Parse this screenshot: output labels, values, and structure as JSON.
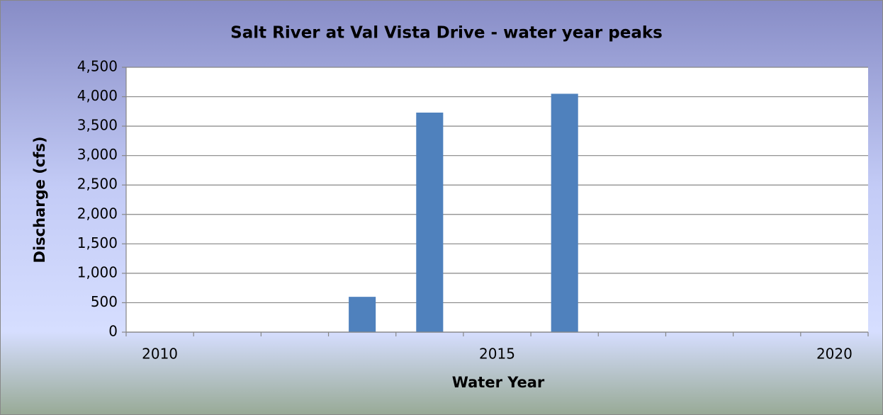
{
  "chart_data": {
    "type": "bar",
    "title": "Salt River at Val Vista Drive - water year peaks",
    "x_label": "Water Year",
    "y_label": "Discharge (cfs)",
    "categories": [
      "2010",
      null,
      null,
      null,
      null,
      "2015",
      null,
      null,
      null,
      null,
      "2020"
    ],
    "values": [
      null,
      null,
      null,
      600,
      3730,
      null,
      4050,
      null,
      null,
      null,
      null
    ],
    "color": "#4f81bd",
    "ylim": [
      0,
      4500
    ],
    "yticks": [
      0,
      500,
      {
        "value": 1000,
        "label": "1,000"
      },
      {
        "value": 1500,
        "label": "1,500"
      },
      {
        "value": 2000,
        "label": "2,000"
      },
      {
        "value": 2500,
        "label": "2,500"
      },
      {
        "value": 3000,
        "label": "3,000"
      },
      {
        "value": 3500,
        "label": "3,500"
      },
      {
        "value": 4000,
        "label": "4,000"
      },
      {
        "value": 4500,
        "label": "4,500"
      }
    ],
    "grid": true
  }
}
